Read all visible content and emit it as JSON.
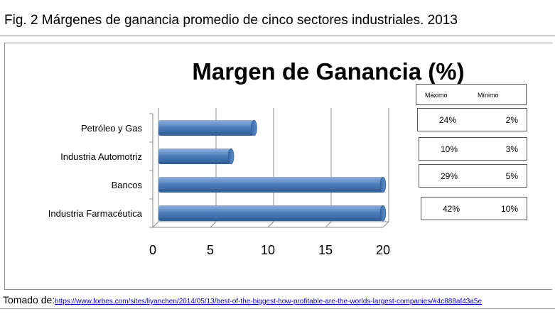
{
  "caption": "Fig. 2 Márgenes de ganancia promedio de cinco sectores industriales.  2013",
  "source": {
    "label": "Tomado de:",
    "link": "https://www.forbes.com/sites/liyanchen/2014/05/13/best-of-the-biggest-how-profitable-are-the-worlds-largest-companies/#4c888af43a5e"
  },
  "chart_data": {
    "type": "bar",
    "orientation": "horizontal",
    "title": "Margen de Ganancia (%)",
    "categories": [
      "Petróleo y Gas",
      "Industria Automotriz",
      "Bancos",
      "Industria Farmacéutica"
    ],
    "values": [
      8.3,
      6.3,
      19.5,
      19.5
    ],
    "xlim": [
      0,
      20
    ],
    "xticks": [
      "0",
      "5",
      "10",
      "15",
      "20"
    ],
    "xlabel": "",
    "ylabel": "",
    "grid": true,
    "bar_color": "#4f81bd",
    "legend": "none"
  },
  "range_table": {
    "header": {
      "max": "Máximo",
      "min": "Mínimo"
    },
    "rows": [
      {
        "max": "24%",
        "min": "2%"
      },
      {
        "max": "10%",
        "min": "3%"
      },
      {
        "max": "29%",
        "min": "5%"
      },
      {
        "max": "42%",
        "min": "10%"
      }
    ]
  }
}
